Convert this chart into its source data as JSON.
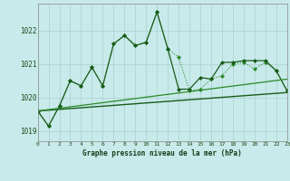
{
  "background_color": "#c8eaea",
  "grid_color": "#b0d4d4",
  "title": "Graphe pression niveau de la mer (hPa)",
  "xlim": [
    0,
    23
  ],
  "ylim": [
    1018.7,
    1022.8
  ],
  "yticks": [
    1019,
    1020,
    1021,
    1022
  ],
  "xticks": [
    0,
    1,
    2,
    3,
    4,
    5,
    6,
    7,
    8,
    9,
    10,
    11,
    12,
    13,
    14,
    15,
    16,
    17,
    18,
    19,
    20,
    21,
    22,
    23
  ],
  "series": [
    {
      "x": [
        0,
        1,
        2,
        3,
        4,
        5,
        6,
        7,
        8,
        9,
        10,
        11,
        12,
        13,
        14,
        15,
        16,
        17,
        18,
        19,
        20,
        21,
        22,
        23
      ],
      "y": [
        1019.6,
        1019.15,
        1019.75,
        1020.5,
        1020.35,
        1020.9,
        1020.35,
        1021.6,
        1021.85,
        1021.55,
        1021.65,
        1022.55,
        1021.45,
        1021.2,
        1020.2,
        1020.25,
        1020.55,
        1020.65,
        1021.0,
        1021.05,
        1020.85,
        1021.05,
        1020.8,
        1020.2
      ],
      "color": "#2a8a2a",
      "lw": 0.8,
      "marker": "D",
      "ms": 2.0,
      "linestyle": "dotted"
    },
    {
      "x": [
        0,
        1,
        2,
        3,
        4,
        5,
        6,
        7,
        8,
        9,
        10,
        11,
        12,
        13,
        14,
        15,
        16,
        17,
        18,
        19,
        20,
        21,
        22,
        23
      ],
      "y": [
        1019.6,
        1019.15,
        1019.75,
        1020.5,
        1020.35,
        1020.9,
        1020.35,
        1021.6,
        1021.85,
        1021.55,
        1021.65,
        1022.55,
        1021.45,
        1020.25,
        1020.25,
        1020.6,
        1020.55,
        1021.05,
        1021.05,
        1021.1,
        1021.1,
        1021.1,
        1020.8,
        1020.2
      ],
      "color": "#1a5c1a",
      "lw": 0.9,
      "marker": "D",
      "ms": 2.0,
      "linestyle": "solid"
    },
    {
      "x": [
        0,
        23
      ],
      "y": [
        1019.6,
        1020.15
      ],
      "color": "#1a5c1a",
      "lw": 1.0,
      "marker": null,
      "ms": 0,
      "linestyle": "solid"
    },
    {
      "x": [
        0,
        23
      ],
      "y": [
        1019.6,
        1020.55
      ],
      "color": "#2a8a2a",
      "lw": 0.9,
      "marker": null,
      "ms": 0,
      "linestyle": "solid"
    }
  ]
}
